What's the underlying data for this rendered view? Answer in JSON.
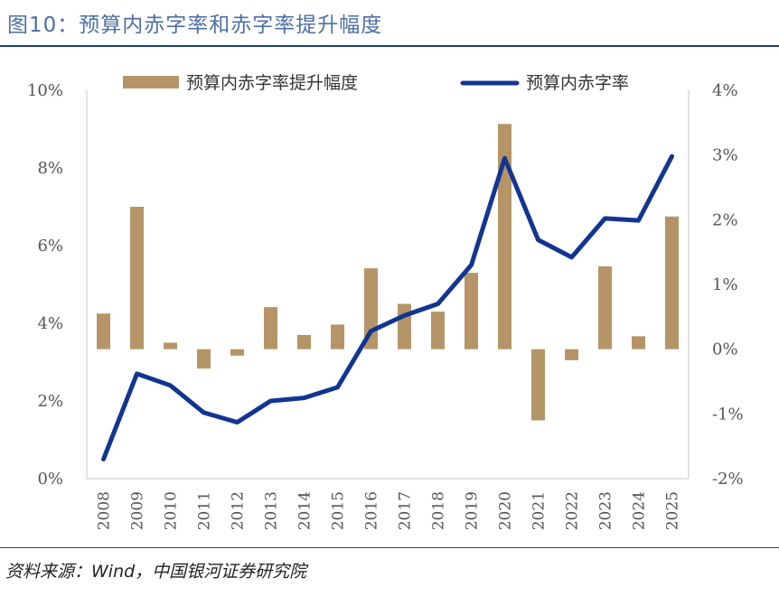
{
  "title": "图10：预算内赤字率和赤字率提升幅度",
  "source": "资料来源：Wind，中国银河证券研究院",
  "colors": {
    "bar": "#b59567",
    "line": "#123592",
    "title": "#4d6fa6",
    "rule": "#1f3f7a"
  },
  "chart_data": {
    "type": "bar+line",
    "categories": [
      "2008",
      "2009",
      "2010",
      "2011",
      "2012",
      "2013",
      "2014",
      "2015",
      "2016",
      "2017",
      "2018",
      "2019",
      "2020",
      "2021",
      "2022",
      "2023",
      "2024",
      "2025"
    ],
    "series": [
      {
        "name": "预算内赤字率提升幅度",
        "type": "bar",
        "axis": "right",
        "values": [
          0.55,
          2.2,
          0.1,
          -0.3,
          -0.1,
          0.65,
          0.22,
          0.38,
          1.25,
          0.7,
          0.58,
          1.18,
          3.48,
          -1.1,
          -0.17,
          1.28,
          0.2,
          2.05
        ]
      },
      {
        "name": "预算内赤字率",
        "type": "line",
        "axis": "left",
        "values": [
          0.5,
          2.7,
          2.4,
          1.7,
          1.45,
          2.0,
          2.08,
          2.35,
          3.8,
          4.2,
          4.5,
          5.5,
          8.25,
          6.15,
          5.7,
          6.7,
          6.65,
          8.3
        ]
      }
    ],
    "y_left": {
      "min": 0,
      "max": 10,
      "ticks": [
        "0%",
        "2%",
        "4%",
        "6%",
        "8%",
        "10%"
      ]
    },
    "y_right": {
      "min": -2,
      "max": 4,
      "ticks": [
        "-2%",
        "-1%",
        "0%",
        "1%",
        "2%",
        "3%",
        "4%"
      ]
    },
    "legend": {
      "position": "top",
      "items": [
        "预算内赤字率提升幅度",
        "预算内赤字率"
      ]
    },
    "grid": false
  }
}
